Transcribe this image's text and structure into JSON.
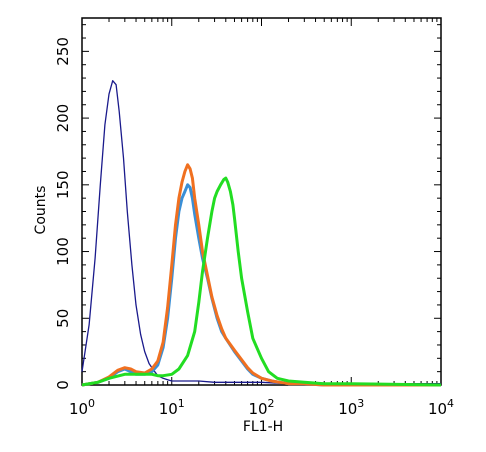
{
  "chart_data": {
    "type": "line",
    "xlabel": "FL1-H",
    "ylabel": "Counts",
    "xscale": "log",
    "xlim": [
      1,
      10000
    ],
    "ylim": [
      0,
      275
    ],
    "x_ticks": [
      {
        "value": 1,
        "base": "10",
        "exp": "0"
      },
      {
        "value": 10,
        "base": "10",
        "exp": "1"
      },
      {
        "value": 100,
        "base": "10",
        "exp": "2"
      },
      {
        "value": 1000,
        "base": "10",
        "exp": "3"
      },
      {
        "value": 10000,
        "base": "10",
        "exp": "4"
      }
    ],
    "y_ticks": [
      0,
      50,
      100,
      150,
      200,
      250
    ],
    "grid": false,
    "legend": "none",
    "series": [
      {
        "color": "#1a1a8c",
        "x": [
          1,
          1.2,
          1.4,
          1.6,
          1.8,
          2.0,
          2.2,
          2.4,
          2.6,
          2.9,
          3.2,
          3.6,
          4.0,
          4.5,
          5.0,
          5.6,
          6.3,
          7.0,
          8.0,
          9.0,
          10,
          12,
          15,
          20,
          30,
          50,
          100,
          200,
          500,
          1000,
          10000
        ],
        "y": [
          10,
          45,
          95,
          150,
          195,
          218,
          228,
          225,
          205,
          170,
          130,
          90,
          60,
          38,
          25,
          16,
          11,
          7,
          5,
          4,
          3,
          3,
          3,
          3,
          2,
          2,
          2,
          1,
          1,
          1,
          1
        ]
      },
      {
        "color": "#3a8fd6",
        "x": [
          1,
          1.5,
          2,
          2.5,
          3,
          3.5,
          4,
          5,
          6,
          7,
          8,
          9,
          10,
          11,
          12,
          13,
          14,
          15,
          16,
          17,
          18,
          20,
          22,
          25,
          28,
          32,
          36,
          40,
          50,
          60,
          70,
          80,
          100,
          130,
          160,
          200,
          300,
          500,
          1000,
          10000
        ],
        "y": [
          0,
          2,
          5,
          10,
          12,
          10,
          8,
          8,
          10,
          15,
          28,
          50,
          80,
          110,
          130,
          140,
          145,
          150,
          148,
          140,
          128,
          110,
          95,
          80,
          65,
          50,
          40,
          35,
          25,
          18,
          12,
          8,
          5,
          3,
          2,
          1,
          1,
          0,
          0,
          0
        ]
      },
      {
        "color": "#f07020",
        "x": [
          1,
          1.5,
          2,
          2.5,
          3,
          3.5,
          4,
          5,
          6,
          7,
          8,
          9,
          10,
          11,
          12,
          13,
          14,
          15,
          16,
          17,
          18,
          20,
          22,
          25,
          28,
          32,
          36,
          40,
          50,
          60,
          70,
          80,
          100,
          130,
          160,
          200,
          300,
          500,
          1000,
          10000
        ],
        "y": [
          0,
          2,
          6,
          11,
          13,
          12,
          10,
          9,
          12,
          18,
          32,
          58,
          90,
          120,
          140,
          152,
          160,
          165,
          162,
          155,
          140,
          120,
          100,
          82,
          66,
          52,
          42,
          35,
          26,
          19,
          13,
          9,
          5,
          3,
          2,
          1,
          1,
          0,
          0,
          0
        ]
      },
      {
        "color": "#22dd22",
        "x": [
          1,
          1.5,
          2,
          3,
          4,
          5,
          6,
          7,
          8,
          10,
          12,
          15,
          18,
          20,
          22,
          25,
          28,
          30,
          32,
          35,
          38,
          40,
          42,
          45,
          48,
          50,
          55,
          60,
          70,
          80,
          100,
          120,
          150,
          200,
          300,
          500,
          1000,
          10000
        ],
        "y": [
          0,
          2,
          5,
          8,
          8,
          8,
          8,
          7,
          7,
          8,
          12,
          22,
          40,
          62,
          85,
          110,
          130,
          140,
          145,
          150,
          154,
          155,
          152,
          145,
          135,
          125,
          100,
          80,
          55,
          35,
          20,
          10,
          5,
          3,
          2,
          1,
          1,
          0
        ]
      }
    ]
  }
}
